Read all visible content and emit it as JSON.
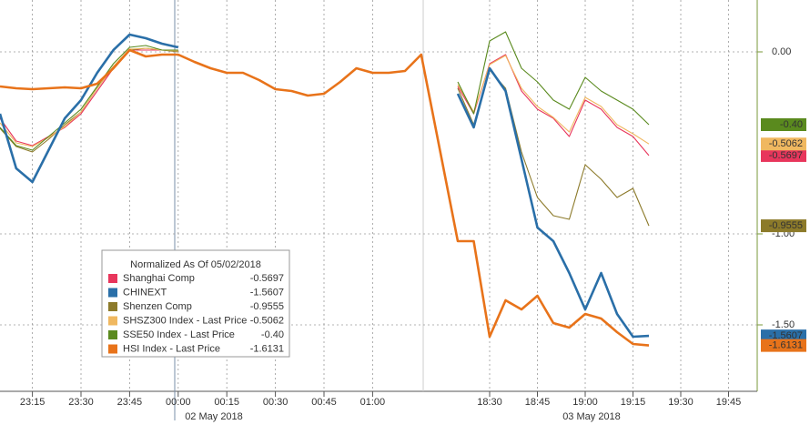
{
  "chart_data": {
    "type": "line",
    "categories": [
      null,
      null,
      "23:15",
      null,
      null,
      "23:30",
      null,
      null,
      "23:45",
      null,
      null,
      "00:00",
      null,
      null,
      "00:15",
      null,
      null,
      "00:30",
      null,
      null,
      "00:45",
      null,
      null,
      "01:00",
      null,
      null,
      null,
      null,
      null,
      "18:30",
      null,
      null,
      "18:45",
      null,
      null,
      "19:00",
      null,
      null,
      "19:15",
      null,
      null,
      "19:30",
      null,
      null,
      "19:45"
    ],
    "date_labels": [
      "02 May 2018",
      "03 May 2018"
    ],
    "ylim": [
      0.285,
      -1.865
    ],
    "yticks": [
      {
        "value": 0,
        "label": "0.00"
      },
      {
        "value": -1,
        "label": "-1.00"
      },
      {
        "value": -1.5,
        "label": "-1.50"
      }
    ],
    "grid": true,
    "legend": {
      "title": "Normalized As Of 05/02/2018",
      "position": "lower-left"
    },
    "series": [
      {
        "name": "Shanghai Comp",
        "color": "#e8365c",
        "last": "-0.5697",
        "values": [
          -0.365,
          -0.49,
          -0.515,
          -0.465,
          -0.415,
          -0.34,
          -0.215,
          -0.09,
          0.01,
          0.01,
          0.01,
          0.01,
          null,
          null,
          null,
          null,
          null,
          null,
          null,
          null,
          null,
          null,
          null,
          null,
          null,
          null,
          null,
          -0.19,
          -0.34,
          -0.065,
          -0.015,
          -0.215,
          -0.315,
          -0.365,
          -0.465,
          -0.265,
          -0.315,
          -0.415,
          -0.465,
          -0.5697,
          null,
          null,
          null,
          null,
          null
        ]
      },
      {
        "name": "CHINEXT",
        "color": "#2a6fa8",
        "last": "-1.5607",
        "values": [
          -0.34,
          -0.64,
          -0.715,
          -0.54,
          -0.365,
          -0.265,
          -0.115,
          0.01,
          0.095,
          0.075,
          0.045,
          0.025,
          null,
          null,
          null,
          null,
          null,
          null,
          null,
          null,
          null,
          null,
          null,
          null,
          null,
          null,
          null,
          -0.23,
          -0.415,
          -0.09,
          -0.215,
          -0.59,
          -0.965,
          -1.04,
          -1.215,
          -1.415,
          -1.215,
          -1.44,
          -1.565,
          -1.5607,
          null,
          null,
          null,
          null,
          null
        ]
      },
      {
        "name": "Shenzen Comp",
        "color": "#8c7a2a",
        "last": "-0.9555",
        "values": [
          -0.42,
          -0.52,
          -0.55,
          -0.48,
          -0.4,
          -0.33,
          -0.2,
          -0.08,
          0.01,
          0.02,
          0.01,
          0.0,
          null,
          null,
          null,
          null,
          null,
          null,
          null,
          null,
          null,
          null,
          null,
          null,
          null,
          null,
          null,
          -0.2,
          -0.4,
          -0.1,
          -0.2,
          -0.55,
          -0.8,
          -0.9,
          -0.92,
          -0.62,
          -0.7,
          -0.8,
          -0.75,
          -0.9555,
          null,
          null,
          null,
          null,
          null
        ]
      },
      {
        "name": "SHSZ300 Index - Last Price",
        "color": "#f0b860",
        "last": "-0.5062",
        "values": [
          -0.39,
          -0.5,
          -0.52,
          -0.47,
          -0.41,
          -0.33,
          -0.2,
          -0.08,
          0.015,
          0.02,
          0.01,
          0.005,
          null,
          null,
          null,
          null,
          null,
          null,
          null,
          null,
          null,
          null,
          null,
          null,
          null,
          null,
          null,
          -0.18,
          -0.33,
          -0.07,
          -0.02,
          -0.2,
          -0.3,
          -0.36,
          -0.44,
          -0.25,
          -0.3,
          -0.4,
          -0.45,
          -0.5062,
          null,
          null,
          null,
          null,
          null
        ]
      },
      {
        "name": "SSE50 Index - Last Price",
        "color": "#5a8a1e",
        "last": "-0.40",
        "values": [
          -0.415,
          -0.515,
          -0.54,
          -0.465,
          -0.39,
          -0.315,
          -0.19,
          -0.065,
          0.025,
          0.035,
          0.01,
          0.01,
          null,
          null,
          null,
          null,
          null,
          null,
          null,
          null,
          null,
          null,
          null,
          null,
          null,
          null,
          null,
          -0.165,
          -0.34,
          0.06,
          0.11,
          -0.09,
          -0.165,
          -0.265,
          -0.315,
          -0.14,
          -0.215,
          -0.265,
          -0.315,
          -0.4,
          null,
          null,
          null,
          null,
          null
        ]
      },
      {
        "name": "HSI Index - Last Price",
        "color": "#e8731a",
        "last": "-1.6131",
        "values": [
          -0.19,
          -0.2,
          -0.205,
          -0.2,
          -0.195,
          -0.2,
          -0.175,
          -0.09,
          0.01,
          -0.025,
          -0.015,
          -0.015,
          -0.055,
          -0.09,
          -0.115,
          -0.115,
          -0.155,
          -0.205,
          -0.215,
          -0.24,
          -0.23,
          -0.165,
          -0.09,
          -0.115,
          -0.115,
          -0.105,
          -0.015,
          -1.04,
          -1.04,
          -1.565,
          -1.365,
          -1.415,
          -1.34,
          -1.49,
          -1.515,
          -1.44,
          -1.465,
          -1.54,
          -1.605,
          -1.6131,
          null,
          null,
          null,
          null,
          null
        ]
      }
    ]
  }
}
